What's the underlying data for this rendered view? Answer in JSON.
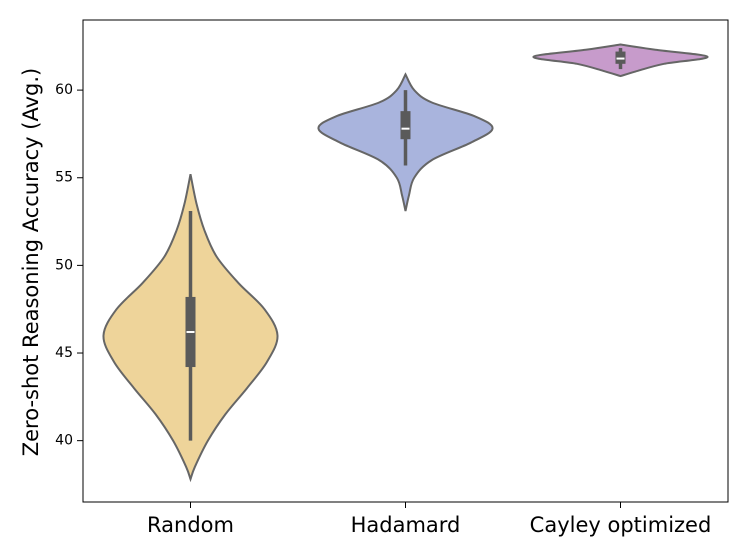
{
  "chart_data": {
    "type": "violin",
    "y_label": "Zero-shot Reasoning Accuracy (Avg.)",
    "categories": [
      "Random",
      "Hadamard",
      "Cayley optimized"
    ],
    "ylim": [
      36.5,
      64
    ],
    "yticks": [
      40,
      45,
      50,
      55,
      60
    ],
    "grid": false,
    "edge_color": "#666666",
    "violins": [
      {
        "color": "#eed49a",
        "whisker": [
          40.0,
          53.1
        ],
        "box": [
          44.2,
          48.2
        ],
        "median": 46.2,
        "kde": {
          "y": [
            37.8,
            38.5,
            40,
            41.5,
            43,
            44.5,
            46,
            47.5,
            49,
            50.5,
            52,
            53.5,
            55.2
          ],
          "width": [
            0,
            0.05,
            0.2,
            0.4,
            0.65,
            0.88,
            1,
            0.85,
            0.55,
            0.3,
            0.16,
            0.07,
            0
          ]
        }
      },
      {
        "color": "#a9b4dd",
        "whisker": [
          55.7,
          60.0
        ],
        "box": [
          57.2,
          58.8
        ],
        "median": 57.8,
        "kde": {
          "y": [
            53.1,
            54,
            55,
            56,
            57,
            57.8,
            58.5,
            59.3,
            60,
            60.9
          ],
          "width": [
            0,
            0.04,
            0.1,
            0.3,
            0.75,
            1,
            0.8,
            0.3,
            0.1,
            0
          ]
        }
      },
      {
        "color": "#c79bcb",
        "whisker": [
          61.2,
          62.4
        ],
        "box": [
          61.5,
          62.2
        ],
        "median": 61.8,
        "kde": {
          "y": [
            60.8,
            61.1,
            61.5,
            61.9,
            62.3,
            62.6
          ],
          "width": [
            0,
            0.2,
            0.5,
            1,
            0.4,
            0
          ]
        }
      }
    ]
  }
}
